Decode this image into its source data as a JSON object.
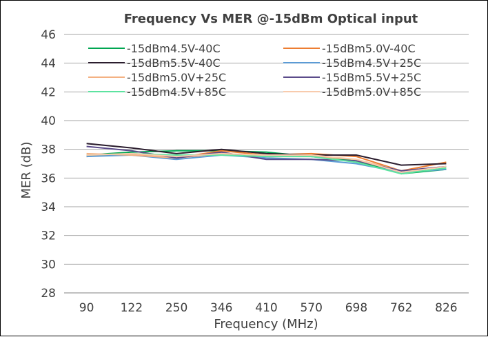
{
  "chart_data": {
    "type": "line",
    "title": "Frequency Vs MER @-15dBm Optical input",
    "xlabel": "Frequency (MHz)",
    "ylabel": "MER (dB)",
    "categories": [
      "90",
      "122",
      "250",
      "346",
      "410",
      "570",
      "698",
      "762",
      "826"
    ],
    "ylim": [
      28,
      46
    ],
    "yticks": [
      28,
      30,
      32,
      34,
      36,
      38,
      40,
      42,
      44,
      46
    ],
    "grid": true,
    "legend_position": "top",
    "series": [
      {
        "name": "-15dBm4.5V-40C",
        "color": "#00A651",
        "values": [
          37.6,
          37.8,
          37.9,
          37.9,
          37.8,
          37.5,
          37.2,
          36.3,
          36.6
        ]
      },
      {
        "name": "-15dBm5.0V-40C",
        "color": "#ED7D31",
        "values": [
          37.5,
          37.7,
          37.4,
          37.9,
          37.6,
          37.7,
          37.5,
          36.5,
          37.1
        ]
      },
      {
        "name": "-15dBm5.5V-40C",
        "color": "#2B1D2E",
        "values": [
          38.4,
          38.1,
          37.7,
          38.0,
          37.7,
          37.6,
          37.6,
          36.9,
          37.0
        ]
      },
      {
        "name": "-15dBm4.5V+25C",
        "color": "#5B9BD5",
        "values": [
          37.5,
          37.6,
          37.3,
          37.6,
          37.4,
          37.3,
          37.0,
          36.4,
          36.6
        ]
      },
      {
        "name": "-15dBm5.0V+25C",
        "color": "#F4B183",
        "values": [
          37.7,
          37.6,
          37.4,
          37.7,
          37.5,
          37.5,
          37.3,
          36.5,
          36.8
        ]
      },
      {
        "name": "-15dBm5.5V+25C",
        "color": "#5B4B8A",
        "values": [
          38.2,
          37.9,
          37.4,
          37.8,
          37.3,
          37.3,
          37.2,
          36.5,
          36.8
        ]
      },
      {
        "name": "-15dBm4.5V+85C",
        "color": "#5DE3A0",
        "values": [
          37.6,
          37.7,
          37.6,
          37.6,
          37.5,
          37.5,
          37.1,
          36.3,
          36.7
        ]
      },
      {
        "name": "-15dBm5.0V+85C",
        "color": "#F8CBAD",
        "values": [
          37.6,
          37.7,
          37.5,
          37.7,
          37.6,
          37.6,
          37.3,
          36.4,
          36.8
        ]
      }
    ]
  }
}
